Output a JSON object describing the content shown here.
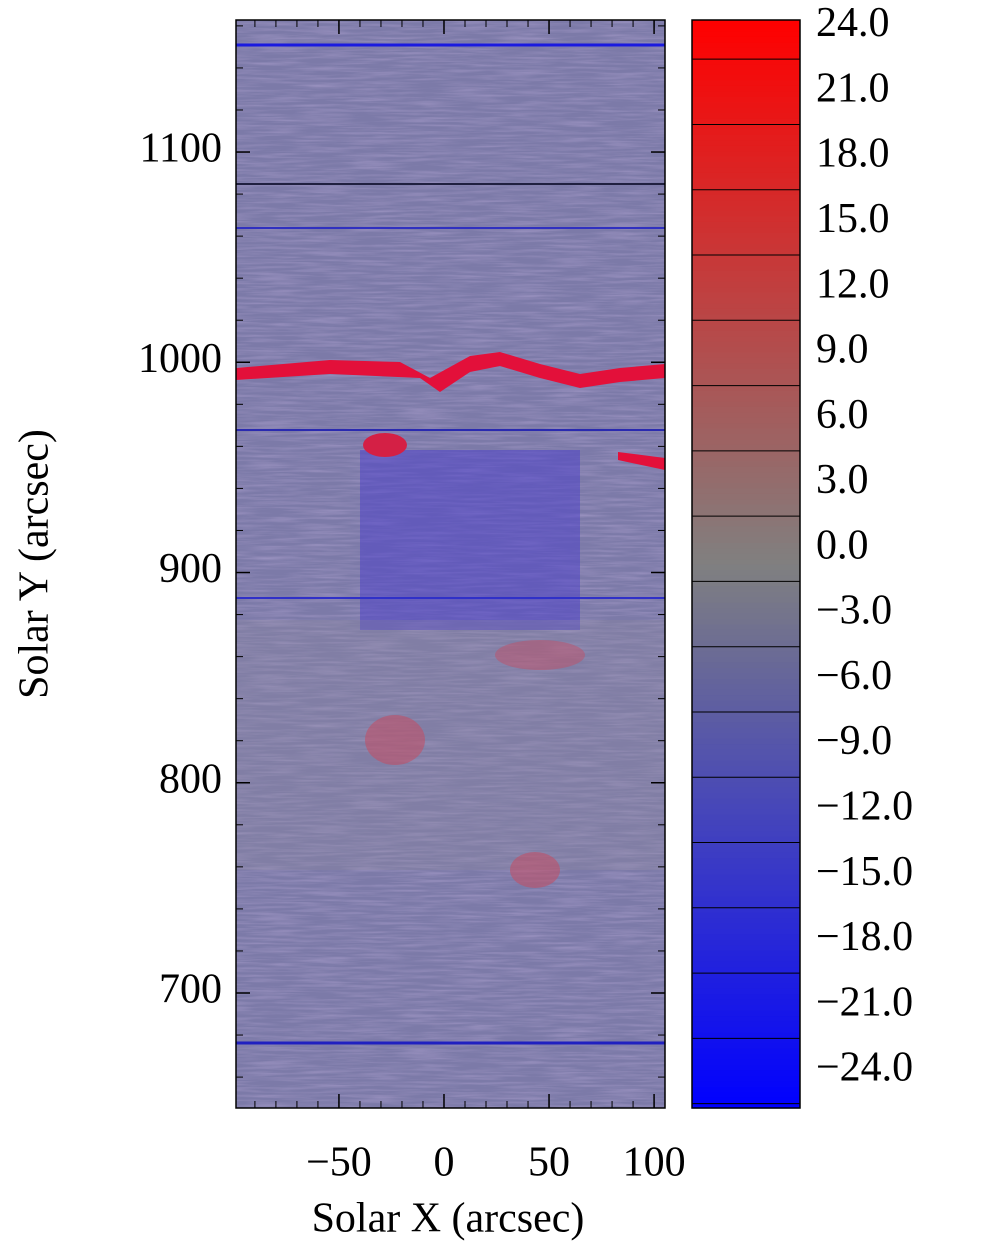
{
  "chart_data": {
    "type": "heatmap",
    "xlabel": "Solar X (arcsec)",
    "ylabel": "Solar Y (arcsec)",
    "xlim": [
      -99,
      105.2
    ],
    "ylim": [
      645.3,
      1162.8
    ],
    "xticks": [
      {
        "value": -50,
        "label": "−50"
      },
      0,
      50,
      100
    ],
    "yticks": [
      700,
      800,
      900,
      1000,
      1100
    ],
    "clim": [
      -25.7,
      24.3
    ],
    "colorscale": [
      "#0000ff",
      "#808080",
      "#ff0000"
    ],
    "cticks": [
      {
        "value": 24,
        "label": "24.0"
      },
      {
        "value": 21,
        "label": "21.0"
      },
      {
        "value": 18,
        "label": "18.0"
      },
      {
        "value": 15,
        "label": "15.0"
      },
      {
        "value": 12,
        "label": "12.0"
      },
      {
        "value": 9,
        "label": "9.0"
      },
      {
        "value": 6,
        "label": "6.0"
      },
      {
        "value": 3,
        "label": "3.0"
      },
      {
        "value": 0,
        "label": "0.0"
      },
      {
        "value": -3,
        "label": "−3.0"
      },
      {
        "value": -6,
        "label": "−6.0"
      },
      {
        "value": -9,
        "label": "−9.0"
      },
      {
        "value": -12,
        "label": "−12.0"
      },
      {
        "value": -15,
        "label": "−15.0"
      },
      {
        "value": -18,
        "label": "−18.0"
      },
      {
        "value": -21,
        "label": "−21.0"
      },
      {
        "value": -24,
        "label": "−24.0"
      }
    ]
  }
}
